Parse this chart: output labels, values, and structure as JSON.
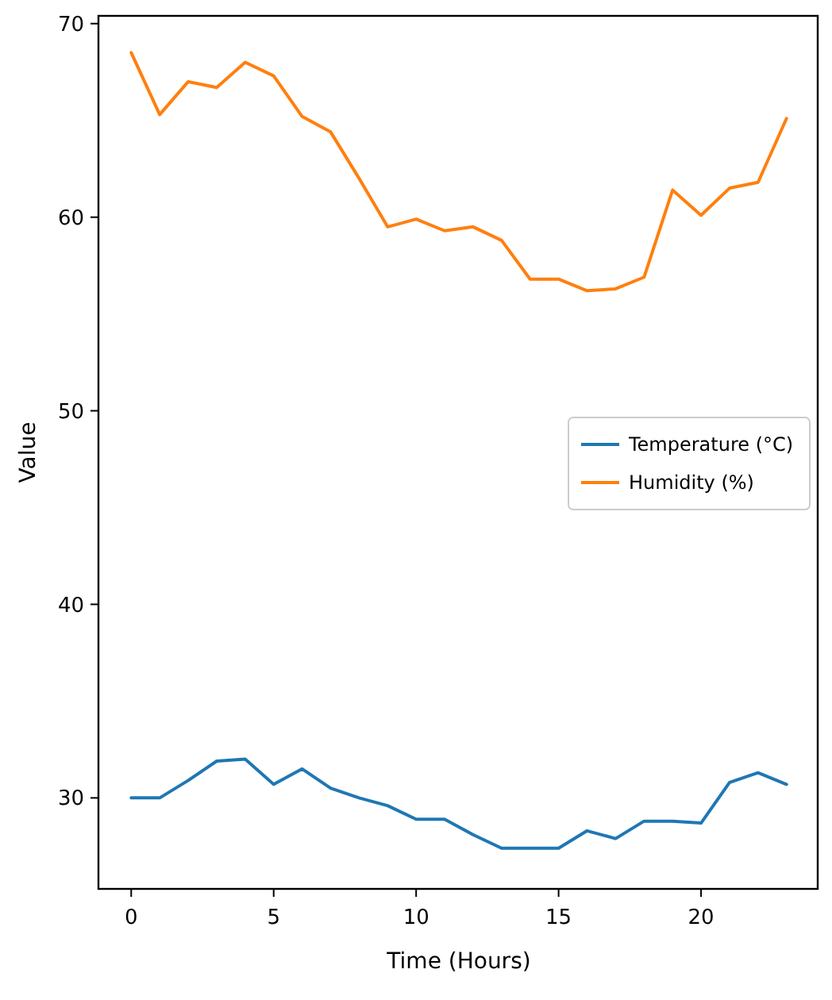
{
  "chart_data": {
    "type": "line",
    "xlabel": "Time (Hours)",
    "ylabel": "Value",
    "x": [
      0,
      1,
      2,
      3,
      4,
      5,
      6,
      7,
      8,
      9,
      10,
      11,
      12,
      13,
      14,
      15,
      16,
      17,
      18,
      19,
      20,
      21,
      22,
      23
    ],
    "xlim": [
      -1.15,
      24.15
    ],
    "xticks": [
      0,
      5,
      10,
      15,
      20
    ],
    "ylim": [
      25.3,
      70.4
    ],
    "yticks": [
      30,
      40,
      50,
      60,
      70
    ],
    "series": [
      {
        "name": "Temperature (°C)",
        "color": "#1f77b4",
        "values": [
          30.0,
          30.0,
          30.9,
          31.9,
          32.0,
          30.7,
          31.5,
          30.5,
          30.0,
          29.6,
          28.9,
          28.9,
          28.1,
          27.4,
          27.4,
          27.4,
          28.3,
          27.9,
          28.8,
          28.8,
          28.7,
          30.8,
          31.3,
          30.7
        ]
      },
      {
        "name": "Humidity (%)",
        "color": "#ff7f0e",
        "values": [
          68.5,
          65.3,
          67.0,
          66.7,
          68.0,
          67.3,
          65.2,
          64.4,
          62.0,
          59.5,
          59.9,
          59.3,
          59.5,
          58.8,
          56.8,
          56.8,
          56.2,
          56.3,
          56.9,
          61.4,
          60.1,
          61.5,
          61.8,
          65.1
        ]
      }
    ],
    "legend": "right",
    "grid": false
  }
}
